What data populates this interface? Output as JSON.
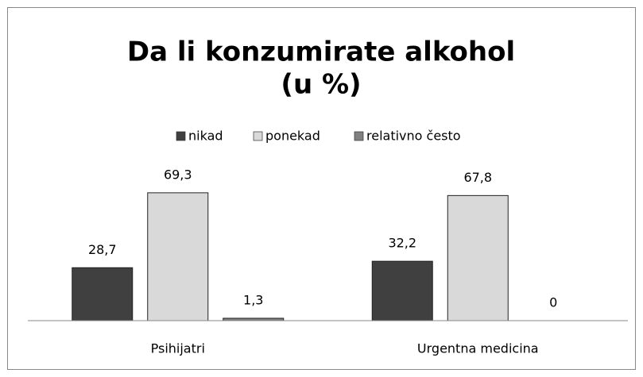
{
  "chart_data": {
    "type": "bar",
    "title": [
      "Da li konzumirate alkohol",
      "(u %)"
    ],
    "categories": [
      "Psihijatri",
      "Urgentna medicina"
    ],
    "series": [
      {
        "name": "nikad",
        "color": "#404040",
        "values": [
          28.7,
          32.2
        ],
        "value_labels": [
          "28,7",
          "32,2"
        ]
      },
      {
        "name": "ponekad",
        "color": "#d9d9d9",
        "values": [
          69.3,
          67.8
        ],
        "value_labels": [
          "69,3",
          "67,8"
        ]
      },
      {
        "name": "relativno često",
        "color": "#808080",
        "values": [
          1.3,
          0
        ],
        "value_labels": [
          "1,3",
          "0"
        ]
      }
    ],
    "ylim": [
      0,
      80
    ],
    "legend": "top"
  }
}
